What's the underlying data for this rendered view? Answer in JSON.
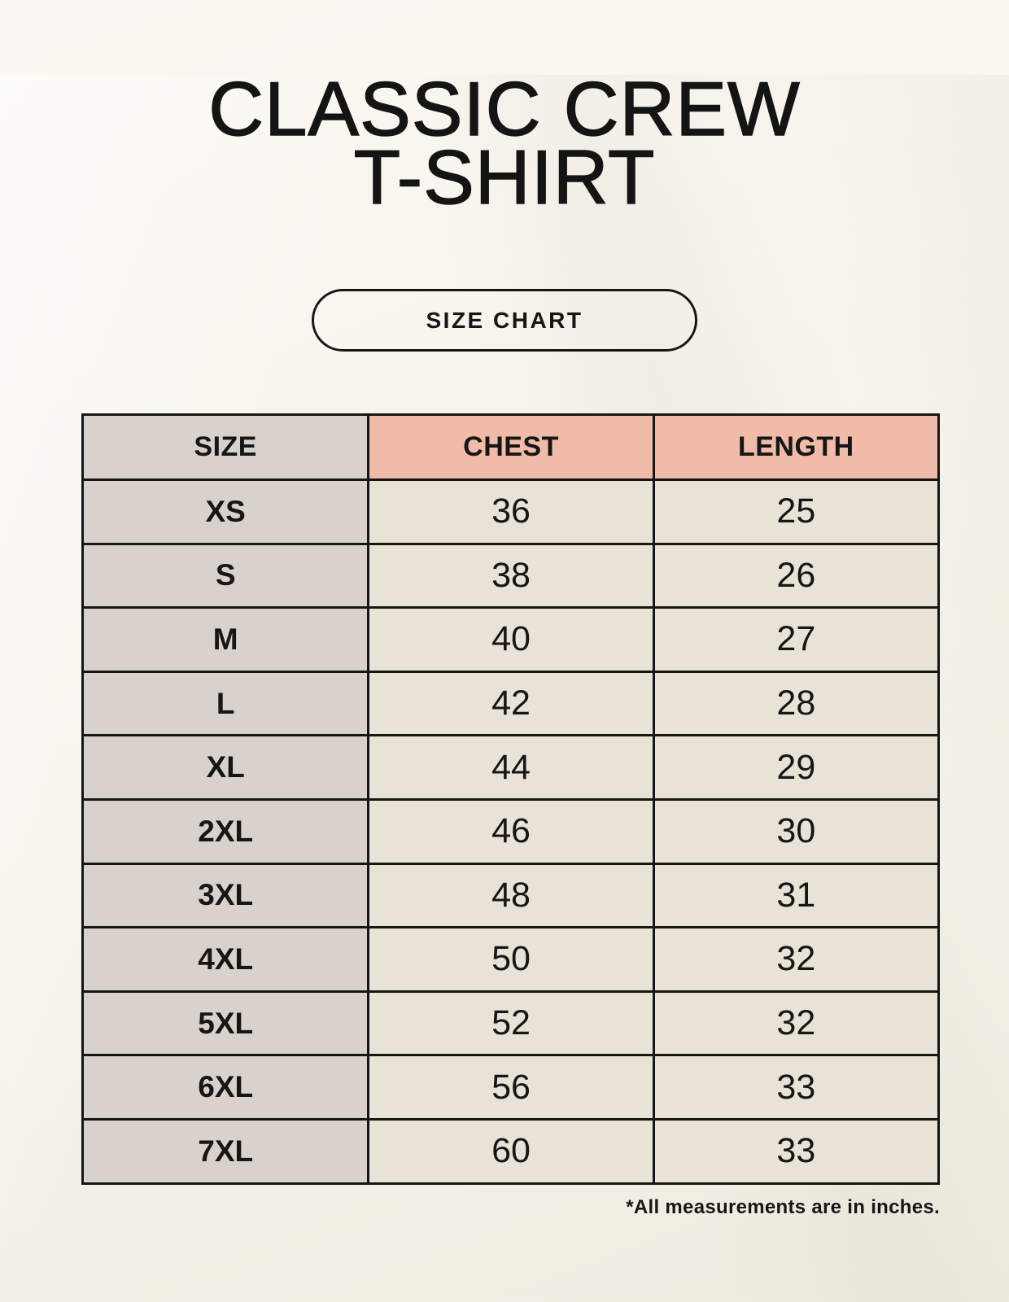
{
  "header": {
    "title_line1": "CLASSIC CREW",
    "title_line2": "T-SHIRT",
    "button_label": "SIZE CHART"
  },
  "footer": {
    "note": "*All measurements are in inches."
  },
  "chart_data": {
    "type": "table",
    "title": "SIZE CHART",
    "units": "inches",
    "columns": [
      "SIZE",
      "CHEST",
      "LENGTH"
    ],
    "rows": [
      [
        "XS",
        "36",
        "25"
      ],
      [
        "S",
        "38",
        "26"
      ],
      [
        "M",
        "40",
        "27"
      ],
      [
        "L",
        "42",
        "28"
      ],
      [
        "XL",
        "44",
        "29"
      ],
      [
        "2XL",
        "46",
        "30"
      ],
      [
        "3XL",
        "48",
        "31"
      ],
      [
        "4XL",
        "50",
        "32"
      ],
      [
        "5XL",
        "52",
        "32"
      ],
      [
        "6XL",
        "56",
        "33"
      ],
      [
        "7XL",
        "60",
        "33"
      ]
    ]
  },
  "colors": {
    "page_background": "#f7f4ec",
    "header_accent_pink": "#f0bba9",
    "size_column_gray": "#d9d2cc",
    "cell_cream": "#e9e2d6",
    "table_border": "#161616",
    "text": "#161616"
  }
}
